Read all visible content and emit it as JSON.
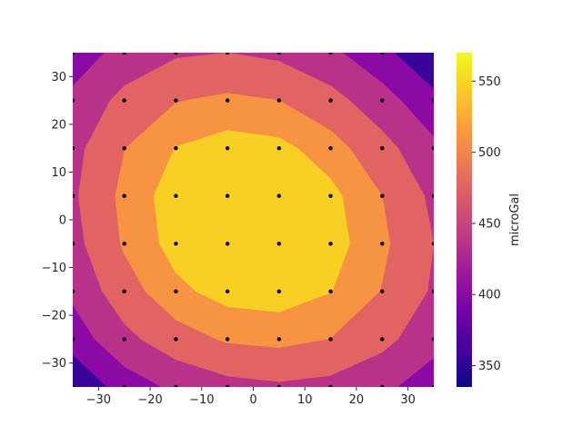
{
  "chart_data": {
    "type": "contour",
    "xlim": [
      -35,
      35
    ],
    "ylim": [
      -35,
      35
    ],
    "x_ticks": [
      -30,
      -20,
      -10,
      0,
      10,
      20,
      30
    ],
    "y_ticks": [
      -30,
      -20,
      -10,
      0,
      10,
      20,
      30
    ],
    "x_tick_labels": [
      "−30",
      "−20",
      "−10",
      "0",
      "10",
      "20",
      "30"
    ],
    "y_tick_labels": [
      "−30",
      "−20",
      "−10",
      "0",
      "10",
      "20",
      "30"
    ],
    "grid": false,
    "colormap": "plasma",
    "colorbar": {
      "label": "microGal",
      "range": [
        335,
        570
      ],
      "ticks": [
        350,
        400,
        450,
        500,
        550
      ]
    },
    "contour_levels": [
      335,
      380,
      420,
      465,
      510,
      545,
      570
    ],
    "station_x": [
      -35,
      -25,
      -15,
      -5,
      5,
      15,
      25,
      35
    ],
    "station_y": [
      -35,
      -25,
      -15,
      -5,
      5,
      15,
      25,
      35
    ],
    "grid_values": [
      [
        347,
        396,
        429,
        450,
        458,
        451,
        430,
        396
      ],
      [
        396,
        452,
        492,
        515,
        521,
        509,
        478,
        435
      ],
      [
        429,
        492,
        536,
        559,
        563,
        546,
        508,
        459
      ],
      [
        450,
        515,
        559,
        581,
        582,
        561,
        518,
        465
      ],
      [
        458,
        521,
        563,
        582,
        579,
        555,
        510,
        455
      ],
      [
        451,
        509,
        546,
        561,
        555,
        527,
        481,
        429
      ],
      [
        430,
        478,
        508,
        518,
        510,
        481,
        437,
        390
      ],
      [
        396,
        435,
        459,
        465,
        455,
        429,
        390,
        347
      ]
    ]
  },
  "colors": {
    "levels": [
      "#3a049a",
      "#8b0aa5",
      "#b83289",
      "#e16462",
      "#f79441",
      "#f8d024"
    ],
    "colorbar_gradient": [
      "#0d0887",
      "#46039f",
      "#7201a8",
      "#9c179e",
      "#bd3786",
      "#d8576b",
      "#ed7953",
      "#fb9f3a",
      "#fdca26",
      "#f0f921"
    ],
    "marker": "#000000",
    "text": "#262626"
  }
}
